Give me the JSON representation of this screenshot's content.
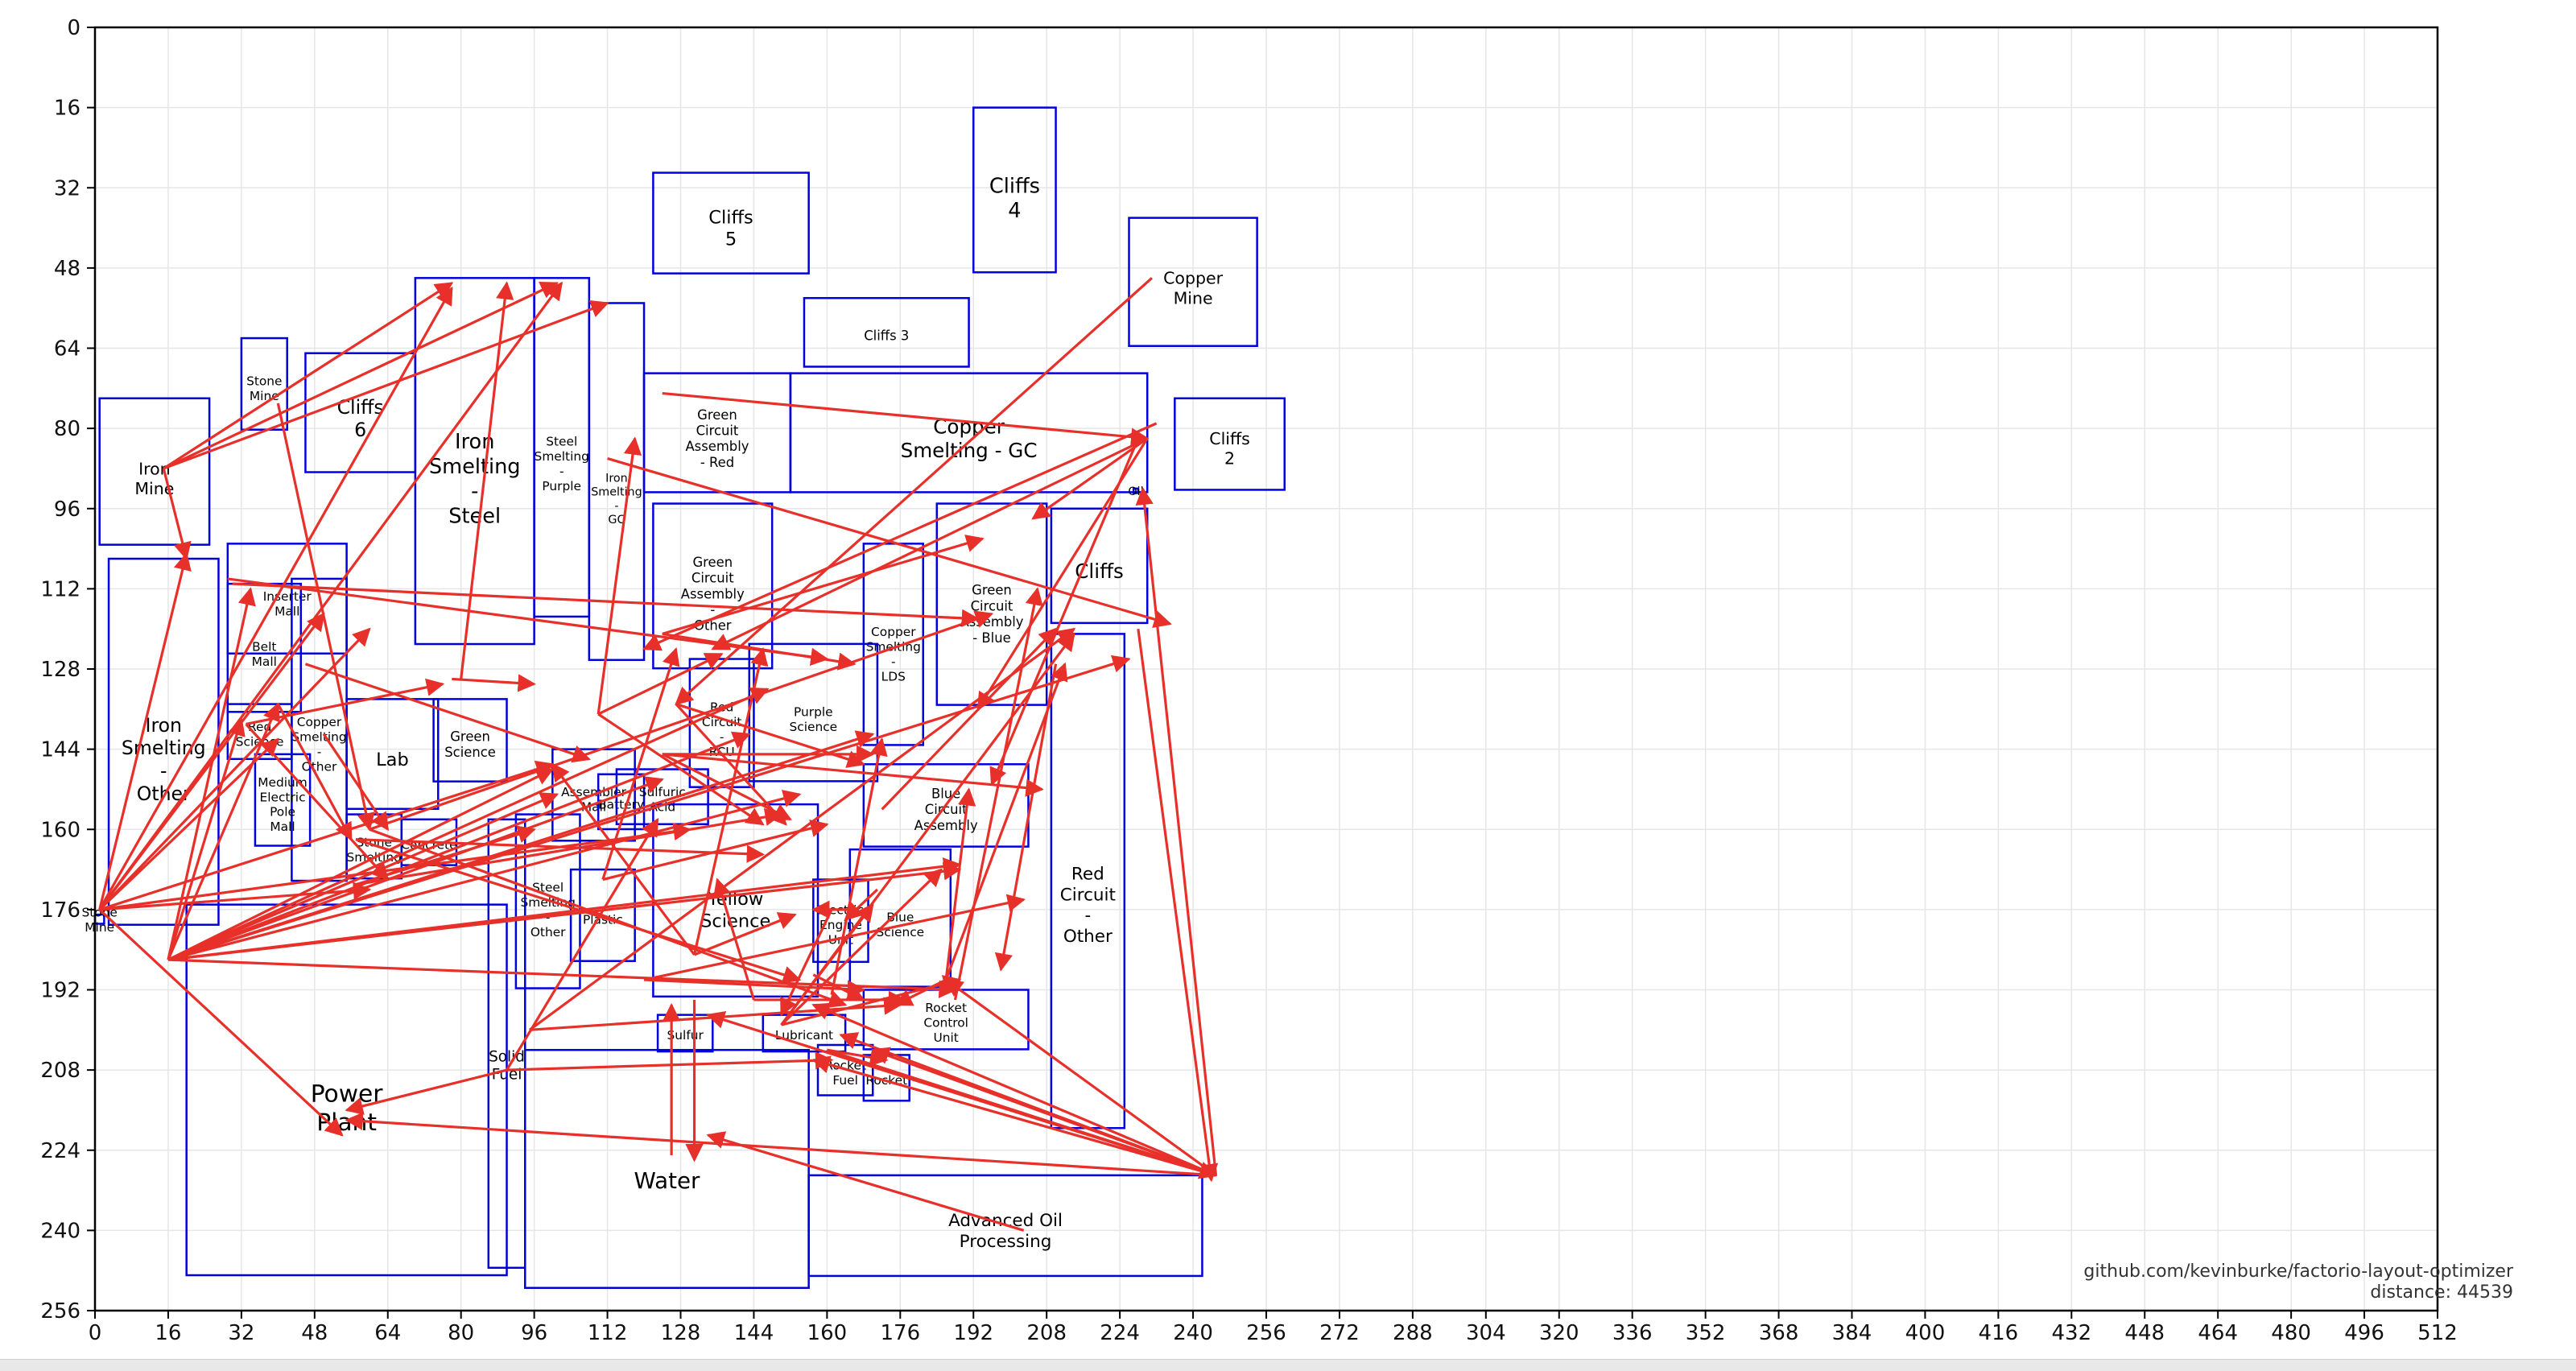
{
  "chart_data": {
    "type": "layout-diagram",
    "xlim": [
      0,
      512
    ],
    "ylim": [
      256,
      0
    ],
    "x_ticks": [
      0,
      16,
      32,
      48,
      64,
      80,
      96,
      112,
      128,
      144,
      160,
      176,
      192,
      208,
      224,
      240,
      256,
      272,
      288,
      304,
      320,
      336,
      352,
      368,
      384,
      400,
      416,
      432,
      448,
      464,
      480,
      496,
      512
    ],
    "y_ticks": [
      0,
      16,
      32,
      48,
      64,
      80,
      96,
      112,
      128,
      144,
      160,
      176,
      192,
      208,
      224,
      240,
      256
    ],
    "grid": true,
    "rect_color": "#0000dd",
    "arrow_color": "#e8302a",
    "rects": [
      {
        "label": "Cliffs\n5",
        "x": 122,
        "y": 29,
        "w": 34,
        "h": 22,
        "fs": 11
      },
      {
        "label": "Cliffs\n4",
        "x": 192,
        "y": 16,
        "w": 18,
        "h": 36,
        "fs": 12.5
      },
      {
        "label": "Copper\nMine",
        "x": 226,
        "y": 38,
        "w": 28,
        "h": 28,
        "fs": 10
      },
      {
        "label": "Cliffs 3",
        "x": 155,
        "y": 54,
        "w": 36,
        "h": 15,
        "fs": 8
      },
      {
        "label": "Cliffs\n2",
        "x": 236,
        "y": 74,
        "w": 24,
        "h": 20,
        "fs": 10
      },
      {
        "label": "Stone\nMine",
        "x": 32,
        "y": 62,
        "w": 10,
        "h": 20,
        "fs": 7.5
      },
      {
        "label": "Cliffs\n6",
        "x": 46,
        "y": 65,
        "w": 24,
        "h": 26,
        "fs": 11.5
      },
      {
        "label": "Iron\nMine",
        "x": 1,
        "y": 74,
        "w": 24,
        "h": 32,
        "fs": 10
      },
      {
        "label": "Iron\nSmelting\n-\nSteel",
        "x": 70,
        "y": 50,
        "w": 26,
        "h": 80,
        "fs": 12.5
      },
      {
        "label": "Steel\nSmelting\n-\nPurple",
        "x": 96,
        "y": 50,
        "w": 12,
        "h": 74,
        "fs": 7.5
      },
      {
        "label": "Iron\nSmelting\n-\nGC",
        "x": 108,
        "y": 55,
        "w": 12,
        "h": 78,
        "fs": 7
      },
      {
        "label": "Green\nCircuit\nAssembly\n- Red",
        "x": 120,
        "y": 69,
        "w": 32,
        "h": 26,
        "fs": 8
      },
      {
        "label": "Copper\nSmelting - GC",
        "x": 152,
        "y": 69,
        "w": 78,
        "h": 26,
        "fs": 12
      },
      {
        "label": "Green\nCircuit\nAssembly\n-\nOther",
        "x": 122,
        "y": 95,
        "w": 26,
        "h": 36,
        "fs": 8
      },
      {
        "label": "Copper\nSmelting\n-\nLDS",
        "x": 168,
        "y": 103,
        "w": 13,
        "h": 44,
        "fs": 7.5
      },
      {
        "label": "Green\nCircuit\nAssembly\n- Blue",
        "x": 184,
        "y": 95,
        "w": 24,
        "h": 44,
        "fs": 8
      },
      {
        "label": "Cliffs",
        "x": 209,
        "y": 96,
        "w": 21,
        "h": 25,
        "fs": 12
      },
      {
        "label": "Red\nCircuit\n-\nOther",
        "x": 209,
        "y": 121,
        "w": 16,
        "h": 108,
        "fs": 10.5
      },
      {
        "label": "Inserter\nMall",
        "x": 29,
        "y": 103,
        "w": 26,
        "h": 24,
        "fs": 7.5
      },
      {
        "label": "Belt\nMall",
        "x": 29,
        "y": 111,
        "w": 16,
        "h": 28,
        "fs": 7.5
      },
      {
        "label": "Red\nScience",
        "x": 29,
        "y": 135,
        "w": 14,
        "h": 12,
        "fs": 7.5
      },
      {
        "label": "Copper\nSmelting\n-\nOther",
        "x": 43,
        "y": 110,
        "w": 12,
        "h": 66,
        "fs": 7.5
      },
      {
        "label": "Medium\nElectric\nPole\nMall",
        "x": 35,
        "y": 145,
        "w": 12,
        "h": 20,
        "fs": 7.5
      },
      {
        "label": "Iron\nSmelting\n-\nOther",
        "x": 3,
        "y": 106,
        "w": 24,
        "h": 80,
        "fs": 11.5
      },
      {
        "label": "Lab",
        "x": 55,
        "y": 134,
        "w": 20,
        "h": 24,
        "fs": 11
      },
      {
        "label": "Green\nScience",
        "x": 74,
        "y": 134,
        "w": 16,
        "h": 18,
        "fs": 8
      },
      {
        "label": "Stone\nSmelting",
        "x": 55,
        "y": 157,
        "w": 12,
        "h": 14,
        "fs": 7.5
      },
      {
        "label": "Concrete",
        "x": 67,
        "y": 158,
        "w": 12,
        "h": 10,
        "fs": 7.5
      },
      {
        "label": "Steel\nSmelting\n-\nOther",
        "x": 92,
        "y": 157,
        "w": 14,
        "h": 38,
        "fs": 7.5
      },
      {
        "label": "Assembler\nMall",
        "x": 100,
        "y": 144,
        "w": 18,
        "h": 20,
        "fs": 7.5
      },
      {
        "label": "Red\nCircuit\n-\nRCU",
        "x": 130,
        "y": 126,
        "w": 14,
        "h": 28,
        "fs": 7.5
      },
      {
        "label": "Purple\nScience",
        "x": 143,
        "y": 123,
        "w": 28,
        "h": 30,
        "fs": 7.5
      },
      {
        "label": "Battery",
        "x": 110,
        "y": 149,
        "w": 10,
        "h": 12,
        "fs": 7.5
      },
      {
        "label": "Sulfuric\nAcid",
        "x": 114,
        "y": 148,
        "w": 20,
        "h": 12,
        "fs": 7.5
      },
      {
        "label": "Blue\nCircuit\nAssembly",
        "x": 168,
        "y": 147,
        "w": 36,
        "h": 18,
        "fs": 8
      },
      {
        "label": "Plastic",
        "x": 104,
        "y": 168,
        "w": 14,
        "h": 20,
        "fs": 7.5
      },
      {
        "label": "Yellow\nScience",
        "x": 122,
        "y": 155,
        "w": 36,
        "h": 42,
        "fs": 11
      },
      {
        "label": "Electric\nEngine\nUnit",
        "x": 157,
        "y": 170,
        "w": 12,
        "h": 18,
        "fs": 7.5
      },
      {
        "label": "Blue\nScience",
        "x": 165,
        "y": 164,
        "w": 22,
        "h": 30,
        "fs": 7.5
      },
      {
        "label": "Rocket\nControl\nUnit",
        "x": 168,
        "y": 192,
        "w": 36,
        "h": 13,
        "fs": 7.5
      },
      {
        "label": "Sulfur",
        "x": 123,
        "y": 197,
        "w": 12,
        "h": 8,
        "fs": 7.5
      },
      {
        "label": "Lubricant",
        "x": 146,
        "y": 197,
        "w": 18,
        "h": 8,
        "fs": 7.5
      },
      {
        "label": "Rocket\nFuel",
        "x": 158,
        "y": 203,
        "w": 12,
        "h": 11,
        "fs": 7.5
      },
      {
        "label": "Rocket",
        "x": 168,
        "y": 205,
        "w": 10,
        "h": 10,
        "fs": 7.5
      },
      {
        "label": "Solid\nFuel",
        "x": 86,
        "y": 158,
        "w": 8,
        "h": 98,
        "fs": 9
      },
      {
        "label": "Water",
        "x": 94,
        "y": 204,
        "w": 62,
        "h": 52,
        "fs": 13.5
      },
      {
        "label": "Advanced Oil\nProcessing",
        "x": 156,
        "y": 229,
        "w": 86,
        "h": 22,
        "fs": 10.5
      },
      {
        "label": "Power\nPlant",
        "x": 20,
        "y": 175,
        "w": 70,
        "h": 81,
        "fs": 14.5
      },
      {
        "label": "Stone\nMine",
        "x": 0,
        "y": 177,
        "w": 2,
        "h": 2,
        "fs": 7.5
      },
      {
        "label": "Oil",
        "x": 227,
        "y": 92,
        "w": 1,
        "h": 1,
        "fs": 7
      }
    ],
    "arrows": [
      [
        15,
        88,
        78,
        51
      ],
      [
        15,
        88,
        112,
        55
      ],
      [
        15,
        88,
        101,
        51
      ],
      [
        15,
        88,
        20,
        106
      ],
      [
        1,
        176,
        20,
        105
      ],
      [
        1,
        176,
        50,
        117
      ],
      [
        1,
        176,
        40,
        142
      ],
      [
        1,
        176,
        60,
        120
      ],
      [
        1,
        176,
        78,
        52
      ],
      [
        1,
        176,
        102,
        51
      ],
      [
        1,
        176,
        100,
        147
      ],
      [
        1,
        176,
        130,
        160
      ],
      [
        1,
        176,
        60,
        172
      ],
      [
        1,
        176,
        54,
        221
      ],
      [
        16,
        186,
        34,
        112
      ],
      [
        16,
        186,
        32,
        138
      ],
      [
        16,
        186,
        101,
        153
      ],
      [
        16,
        186,
        124,
        150
      ],
      [
        16,
        186,
        147,
        132
      ],
      [
        16,
        186,
        154,
        153
      ],
      [
        16,
        186,
        170,
        141
      ],
      [
        16,
        186,
        189,
        168
      ],
      [
        16,
        186,
        188,
        192
      ],
      [
        16,
        186,
        226,
        126
      ],
      [
        16,
        186,
        143,
        141
      ],
      [
        16,
        186,
        189,
        167
      ],
      [
        16,
        186,
        100,
        148
      ],
      [
        16,
        186,
        40,
        135
      ],
      [
        40,
        75,
        60,
        160
      ],
      [
        33,
        139,
        76,
        131
      ],
      [
        33,
        139,
        64,
        170
      ],
      [
        40,
        135,
        56,
        162
      ],
      [
        30,
        111,
        193,
        118
      ],
      [
        29,
        110,
        160,
        126
      ],
      [
        46,
        127,
        108,
        146
      ],
      [
        50,
        141,
        64,
        160
      ],
      [
        80,
        130,
        90,
        51
      ],
      [
        78,
        130,
        96,
        131
      ],
      [
        57,
        171,
        96,
        160
      ],
      [
        57,
        171,
        150,
        157
      ],
      [
        57,
        162,
        146,
        165
      ],
      [
        57,
        162,
        154,
        190
      ],
      [
        60,
        160,
        164,
        195
      ],
      [
        60,
        160,
        196,
        117
      ],
      [
        110,
        137,
        118,
        82
      ],
      [
        110,
        137,
        137,
        125
      ],
      [
        110,
        137,
        146,
        159
      ],
      [
        124,
        73,
        230,
        82
      ],
      [
        112,
        86,
        235,
        119
      ],
      [
        230,
        82,
        205,
        98
      ],
      [
        230,
        82,
        135,
        124
      ],
      [
        230,
        82,
        193,
        136
      ],
      [
        232,
        79,
        120,
        124
      ],
      [
        231,
        50,
        127,
        135
      ],
      [
        127,
        135,
        151,
        159
      ],
      [
        127,
        135,
        168,
        147
      ],
      [
        124,
        121,
        166,
        127
      ],
      [
        124,
        121,
        194,
        102
      ],
      [
        124,
        145,
        170,
        145
      ],
      [
        124,
        145,
        207,
        152
      ],
      [
        124,
        145,
        152,
        158
      ],
      [
        111,
        170,
        127,
        124
      ],
      [
        111,
        170,
        160,
        159
      ],
      [
        131,
        185,
        146,
        124
      ],
      [
        131,
        185,
        153,
        177
      ],
      [
        131,
        185,
        100,
        147
      ],
      [
        144,
        194,
        136,
        170
      ],
      [
        144,
        194,
        177,
        194
      ],
      [
        131,
        194,
        131,
        226
      ],
      [
        126,
        225,
        126,
        195
      ],
      [
        95,
        200,
        176,
        195
      ],
      [
        95,
        200,
        214,
        120
      ],
      [
        150,
        199,
        185,
        168
      ],
      [
        150,
        199,
        189,
        190
      ],
      [
        150,
        199,
        170,
        175
      ],
      [
        150,
        199,
        214,
        121
      ],
      [
        157,
        189,
        168,
        194
      ],
      [
        167,
        176,
        157,
        176
      ],
      [
        171,
        172,
        164,
        178
      ],
      [
        172,
        156,
        210,
        120
      ],
      [
        186,
        190,
        191,
        152
      ],
      [
        186,
        190,
        212,
        127
      ],
      [
        188,
        194,
        206,
        112
      ],
      [
        161,
        193,
        172,
        142
      ],
      [
        161,
        176,
        150,
        197
      ],
      [
        90,
        208,
        123,
        158
      ],
      [
        90,
        208,
        55,
        216
      ],
      [
        90,
        208,
        161,
        206
      ],
      [
        160,
        204,
        245,
        229
      ],
      [
        160,
        204,
        173,
        206
      ],
      [
        245,
        229,
        157,
        206
      ],
      [
        245,
        229,
        170,
        204
      ],
      [
        245,
        229,
        163,
        201
      ],
      [
        245,
        229,
        157,
        195
      ],
      [
        245,
        229,
        55,
        218
      ],
      [
        245,
        229,
        186,
        190
      ],
      [
        245,
        229,
        134,
        197
      ],
      [
        245,
        229,
        229,
        92
      ],
      [
        203,
        240,
        134,
        221
      ],
      [
        186,
        190,
        175,
        195
      ],
      [
        228,
        82,
        196,
        151
      ],
      [
        228,
        120,
        244,
        230
      ],
      [
        210,
        127,
        198,
        188
      ],
      [
        120,
        190,
        203,
        174
      ],
      [
        120,
        190,
        168,
        192
      ]
    ],
    "annotations": [
      "github.com/kevinburke/factorio-layout-optimizer",
      "distance: 44539"
    ]
  }
}
